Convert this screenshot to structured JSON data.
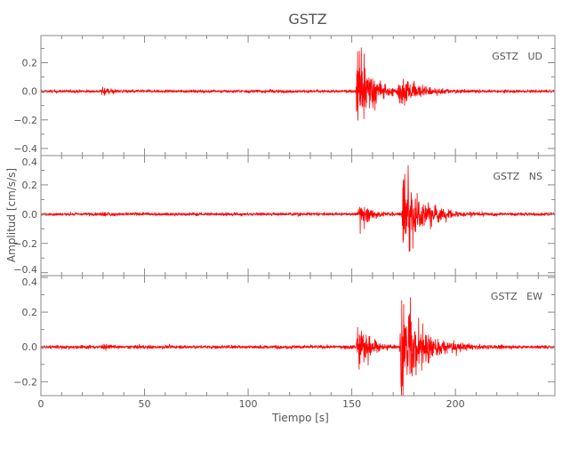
{
  "chart_data": {
    "type": "line",
    "title": "GSTZ",
    "xlabel": "Tiempo [s]",
    "ylabel": "Amplitud [cm/s/s]",
    "xlim": [
      0,
      248
    ],
    "xticks": [
      0,
      50,
      100,
      150,
      200
    ],
    "grid": false,
    "line_color": "#ff0000",
    "panels": [
      {
        "label": "GSTZ   UD",
        "ylim": [
          -0.45,
          0.39
        ],
        "yticks": [
          -0.4,
          -0.2,
          0.0,
          0.2
        ],
        "ytick_labels": [
          "−0.4",
          "−0.2",
          "0.0",
          "0.2"
        ],
        "noise": 0.008,
        "events": [
          {
            "t": 30,
            "amp": 0.04,
            "dur": 3
          },
          {
            "t": 153,
            "amp": 0.42,
            "dur": 6
          },
          {
            "t": 173,
            "amp": 0.1,
            "dur": 10
          }
        ]
      },
      {
        "label": "GSTZ   NS",
        "ylim": [
          -0.42,
          0.4
        ],
        "yticks": [
          -0.4,
          -0.2,
          0.0,
          0.2,
          0.4
        ],
        "ytick_labels": [
          "−0.4",
          "−0.2",
          "0.0",
          "0.2",
          "0.4"
        ],
        "noise": 0.008,
        "events": [
          {
            "t": 30,
            "amp": 0.02,
            "dur": 2
          },
          {
            "t": 154,
            "amp": 0.11,
            "dur": 5
          },
          {
            "t": 175,
            "amp": 0.38,
            "dur": 8
          }
        ]
      },
      {
        "label": "GSTZ   EW",
        "ylim": [
          -0.28,
          0.41
        ],
        "yticks": [
          -0.2,
          0.0,
          0.2,
          0.4
        ],
        "ytick_labels": [
          "−0.2",
          "0.0",
          "0.2",
          "0.4"
        ],
        "noise": 0.008,
        "events": [
          {
            "t": 30,
            "amp": 0.02,
            "dur": 2
          },
          {
            "t": 153,
            "amp": 0.18,
            "dur": 5
          },
          {
            "t": 174,
            "amp": 0.38,
            "dur": 9
          }
        ]
      }
    ]
  }
}
